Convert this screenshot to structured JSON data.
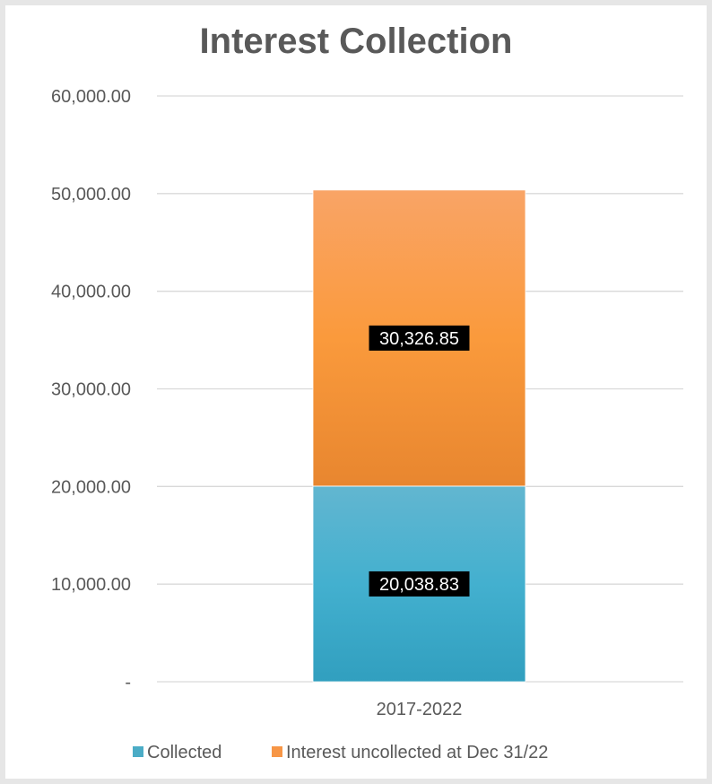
{
  "chart_data": {
    "type": "stacked-bar",
    "title": "Interest Collection",
    "categories": [
      "2017-2022"
    ],
    "series": [
      {
        "name": "Collected",
        "values": [
          20038.83
        ],
        "label": "20,038.83",
        "color": "#4bacc6"
      },
      {
        "name": "Interest uncollected at Dec 31/22",
        "values": [
          30326.85
        ],
        "label": "30,326.85",
        "color": "#f79646"
      }
    ],
    "ylim": [
      0,
      60000
    ],
    "yticks": [
      {
        "value": 0,
        "label": "-"
      },
      {
        "value": 10000,
        "label": "10,000.00"
      },
      {
        "value": 20000,
        "label": "20,000.00"
      },
      {
        "value": 30000,
        "label": "30,000.00"
      },
      {
        "value": 40000,
        "label": "40,000.00"
      },
      {
        "value": 50000,
        "label": "50,000.00"
      },
      {
        "value": 60000,
        "label": "60,000.00"
      }
    ],
    "grid": true,
    "legend": "bottom"
  }
}
